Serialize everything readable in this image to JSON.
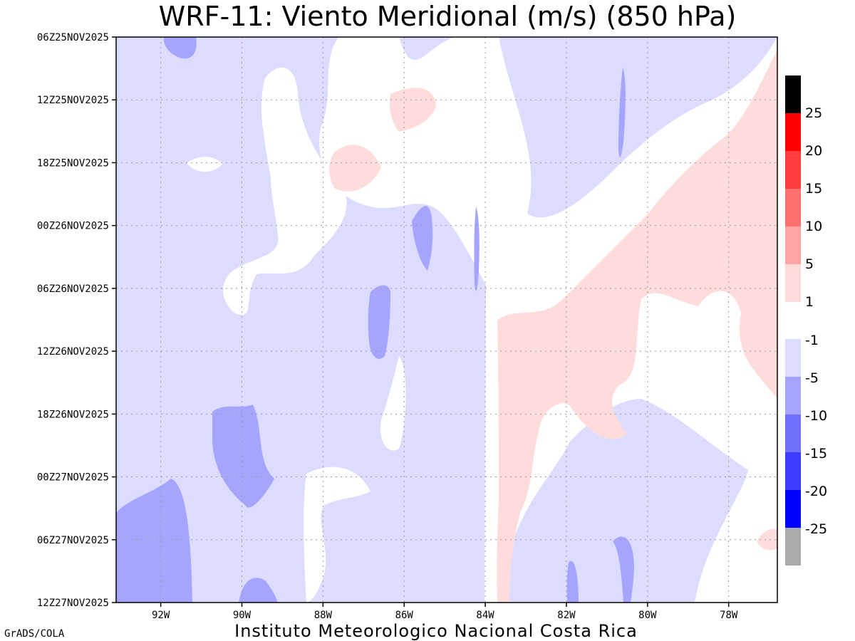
{
  "chart_data": {
    "type": "heatmap",
    "title": "WRF-11: Viento Meridional (m/s) (850 hPa)",
    "xlabel": "",
    "ylabel": "",
    "x_ticks": [
      "92W",
      "90W",
      "88W",
      "86W",
      "84W",
      "82W",
      "80W",
      "78W"
    ],
    "x_tick_values": [
      -92,
      -90,
      -88,
      -86,
      -84,
      -82,
      -80,
      -78
    ],
    "xlim": [
      -93.1,
      -76.8
    ],
    "y_ticks": [
      "06Z25NOV2025",
      "12Z25NOV2025",
      "18Z25NOV2025",
      "00Z26NOV2025",
      "06Z26NOV2025",
      "12Z26NOV2025",
      "18Z26NOV2025",
      "00Z27NOV2025",
      "06Z27NOV2025",
      "12Z27NOV2025"
    ],
    "y_tick_hours": [
      0,
      6,
      12,
      18,
      24,
      30,
      36,
      42,
      48,
      54
    ],
    "ylim_hours": [
      0,
      54
    ],
    "grid": true,
    "colorbar": {
      "labels": [
        "25",
        "20",
        "15",
        "10",
        "5",
        "1",
        "-1",
        "-5",
        "-10",
        "-15",
        "-20",
        "-25"
      ],
      "positive_colors": [
        "#000000",
        "#ff0000",
        "#ff3c3c",
        "#ff7070",
        "#ffa5a5",
        "#ffdcdc"
      ],
      "negative_colors": [
        "#dcdcff",
        "#a5a5ff",
        "#7070ff",
        "#3c3cff",
        "#0000ff",
        "#aaaaaa"
      ]
    },
    "regions": [
      {
        "level": -5,
        "x": [
          -93.1,
          -76.8
        ],
        "y": [
          0,
          54
        ]
      },
      {
        "level": 0,
        "x": [
          -88.0,
          -84.0
        ],
        "y": [
          0,
          54
        ]
      },
      {
        "level": 1,
        "x": [
          -83.5,
          -76.8
        ],
        "y": [
          8,
          49
        ]
      },
      {
        "level": -10,
        "x": [
          -93.1,
          -91.0
        ],
        "y": [
          42,
          54
        ]
      },
      {
        "level": -10,
        "x": [
          -91.0,
          -89.0
        ],
        "y": [
          34,
          44
        ]
      },
      {
        "level": -10,
        "x": [
          -86.6,
          -86.0
        ],
        "y": [
          23,
          31
        ]
      },
      {
        "level": 0,
        "x": [
          -83.7,
          -83.5
        ],
        "y": [
          0,
          54
        ]
      },
      {
        "level": -5,
        "x": [
          -84.0,
          -76.8
        ],
        "y": [
          0,
          5
        ]
      }
    ]
  },
  "footer": {
    "left": "GrADS/COLA",
    "center": "Instituto Meteorologico Nacional Costa Rica"
  }
}
